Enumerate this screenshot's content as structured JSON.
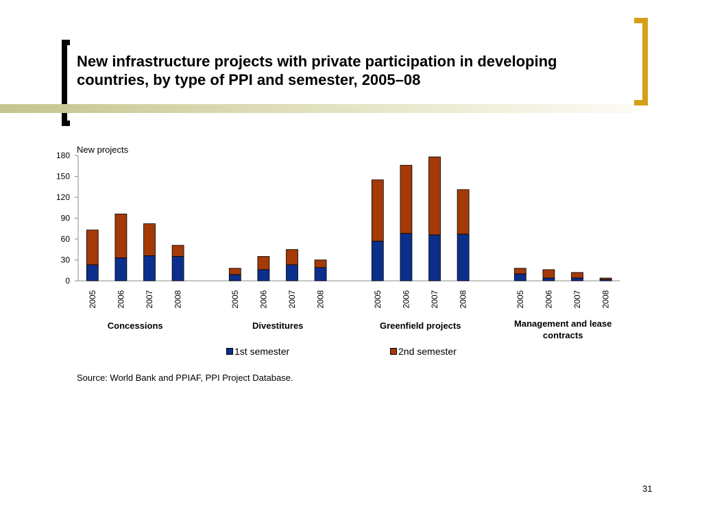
{
  "slide": {
    "title": "New infrastructure projects with private participation in developing countries, by type of PPI and semester, 2005–08",
    "source": "Source: World Bank and PPIAF, PPI Project Database.",
    "page_number": "31"
  },
  "colors": {
    "first_semester": "#0d2f8c",
    "second_semester": "#a33a08",
    "left_bracket": "#000000",
    "right_bracket": "#d4a017"
  },
  "chart_data": {
    "type": "bar",
    "stacked": true,
    "ylabel": "New projects",
    "ylim": [
      0,
      180
    ],
    "yticks": [
      0,
      30,
      60,
      90,
      120,
      150,
      180
    ],
    "groups": [
      {
        "name": "Concessions",
        "years": [
          "2005",
          "2006",
          "2007",
          "2008"
        ],
        "first": [
          23,
          33,
          36,
          35
        ],
        "second": [
          50,
          63,
          46,
          16
        ]
      },
      {
        "name": "Divestitures",
        "years": [
          "2005",
          "2006",
          "2007",
          "2008"
        ],
        "first": [
          9,
          16,
          23,
          19
        ],
        "second": [
          9,
          19,
          22,
          11
        ]
      },
      {
        "name": "Greenfield projects",
        "years": [
          "2005",
          "2006",
          "2007",
          "2008"
        ],
        "first": [
          57,
          68,
          66,
          67
        ],
        "second": [
          88,
          98,
          112,
          64
        ]
      },
      {
        "name": "Management and lease contracts",
        "years": [
          "2005",
          "2006",
          "2007",
          "2008"
        ],
        "first": [
          10,
          4,
          4,
          2
        ],
        "second": [
          8,
          12,
          8,
          2
        ]
      }
    ],
    "series": [
      {
        "name": "1st semester"
      },
      {
        "name": "2nd semester"
      }
    ],
    "legend_position": "bottom"
  }
}
